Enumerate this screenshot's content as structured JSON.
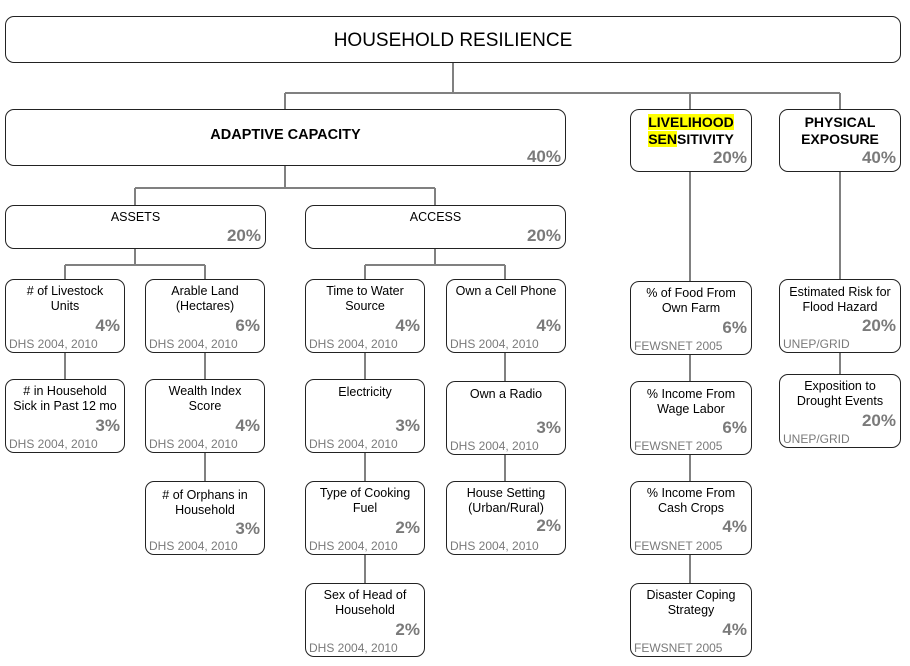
{
  "root": {
    "title": "HOUSEHOLD RESILIENCE"
  },
  "adaptive": {
    "title": "ADAPTIVE CAPACITY",
    "pct": "40%"
  },
  "livelihood": {
    "title_hl1": "LIVELIHOOD",
    "title_hl2": "SEN",
    "title_rest": "SITIVITY",
    "pct": "20%"
  },
  "physical": {
    "title1": "PHYSICAL",
    "title2": "EXPOSURE",
    "pct": "40%"
  },
  "assets": {
    "title": "ASSETS",
    "pct": "20%"
  },
  "access": {
    "title": "ACCESS",
    "pct": "20%"
  },
  "livestock": {
    "l1": "# of Livestock",
    "l2": "Units",
    "pct": "4%",
    "src": "DHS 2004, 2010"
  },
  "sick": {
    "l1": "# in Household",
    "l2": "Sick in Past 12 mo",
    "pct": "3%",
    "src": "DHS 2004, 2010"
  },
  "land": {
    "l1": "Arable Land",
    "l2": "(Hectares)",
    "pct": "6%",
    "src": "DHS 2004, 2010"
  },
  "wealth": {
    "l1": "Wealth Index",
    "l2": "Score",
    "pct": "4%",
    "src": "DHS 2004, 2010"
  },
  "orphans": {
    "l1": "# of Orphans in",
    "l2": "Household",
    "pct": "3%",
    "src": "DHS 2004, 2010"
  },
  "water": {
    "l1": "Time to Water",
    "l2": "Source",
    "pct": "4%",
    "src": "DHS 2004, 2010"
  },
  "electricity": {
    "l1": "Electricity",
    "pct": "3%",
    "src": "DHS 2004, 2010"
  },
  "cooking": {
    "l1": "Type of Cooking",
    "l2": "Fuel",
    "pct": "2%",
    "src": "DHS 2004, 2010"
  },
  "sex": {
    "l1": "Sex of Head of",
    "l2": "Household",
    "pct": "2%",
    "src": "DHS 2004, 2010"
  },
  "phone": {
    "l1": "Own a Cell Phone",
    "pct": "4%",
    "src": "DHS 2004, 2010"
  },
  "radio": {
    "l1": "Own a Radio",
    "pct": "3%",
    "src": "DHS 2004, 2010"
  },
  "setting": {
    "l1": "House Setting",
    "l2": "(Urban/Rural)",
    "pct": "2%",
    "src": "DHS 2004, 2010"
  },
  "food": {
    "l1": "% of Food From",
    "l2": "Own Farm",
    "pct": "6%",
    "src": "FEWSNET 2005"
  },
  "wage": {
    "l1": "% Income From",
    "l2": "Wage Labor",
    "pct": "6%",
    "src": "FEWSNET 2005"
  },
  "cash": {
    "l1": "% Income From",
    "l2": "Cash Crops",
    "pct": "4%",
    "src": "FEWSNET 2005"
  },
  "coping": {
    "l1": "Disaster Coping",
    "l2": "Strategy",
    "pct": "4%",
    "src": "FEWSNET 2005"
  },
  "flood": {
    "l1": "Estimated Risk for",
    "l2": "Flood Hazard",
    "pct": "20%",
    "src": "UNEP/GRID"
  },
  "drought": {
    "l1": "Exposition to",
    "l2": "Drought Events",
    "pct": "20%",
    "src": "UNEP/GRID"
  }
}
